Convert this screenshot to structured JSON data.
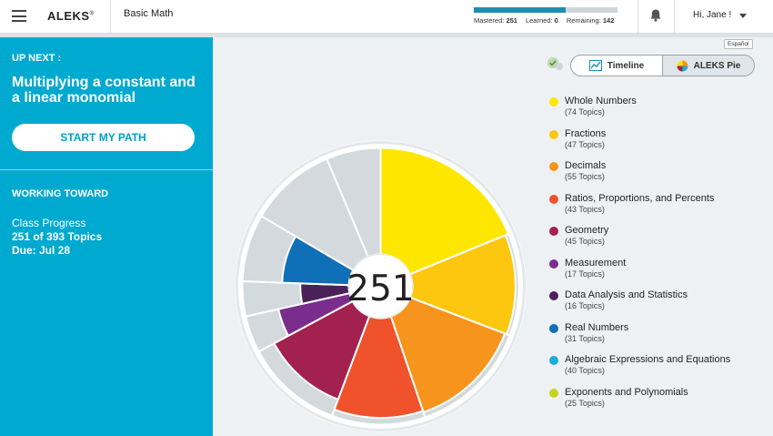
{
  "header": {
    "logo": "ALEKS",
    "logo_mark": "®",
    "course": "Basic Math",
    "progress": {
      "mastered_label": "Mastered:",
      "mastered": "251",
      "learned_label": "Learned:",
      "learned": "0",
      "remaining_label": "Remaining:",
      "remaining": "142",
      "mastered_fraction": 0.639
    },
    "user_greeting": "Hi, Jane !"
  },
  "sidebar": {
    "up_next_label": "UP NEXT :",
    "topic": "Multiplying a constant and a linear monomial",
    "start_button": "START MY PATH",
    "working_toward": "WORKING TOWARD",
    "class_progress_label": "Class Progress",
    "topics_progress": "251 of 393 Topics",
    "due": "Due: Jul 28"
  },
  "view_toggle": {
    "espanol": "Español",
    "options": [
      {
        "label": "Timeline",
        "icon": "timeline-icon",
        "active": false
      },
      {
        "label": "ALEKS Pie",
        "icon": "pie-icon",
        "active": true
      }
    ]
  },
  "pie": {
    "center_value": "251",
    "mastered_color": "varies by slice",
    "remaining_color": "#d3d9dc"
  },
  "legend": [
    {
      "name": "Whole Numbers",
      "count": "(74 Topics)",
      "color": "#ffe600",
      "total": 74,
      "mastered_fraction": 1.0
    },
    {
      "name": "Fractions",
      "count": "(47 Topics)",
      "color": "#fdc60f",
      "total": 47,
      "mastered_fraction": 0.95
    },
    {
      "name": "Decimals",
      "count": "(55 Topics)",
      "color": "#f7941d",
      "total": 55,
      "mastered_fraction": 0.92
    },
    {
      "name": "Ratios, Proportions, and Percents",
      "count": "(43 Topics)",
      "color": "#f0522b",
      "total": 43,
      "mastered_fraction": 0.9
    },
    {
      "name": "Geometry",
      "count": "(45 Topics)",
      "color": "#a3214e",
      "total": 45,
      "mastered_fraction": 0.75
    },
    {
      "name": "Measurement",
      "count": "(17 Topics)",
      "color": "#7b2d8e",
      "total": 17,
      "mastered_fraction": 0.55
    },
    {
      "name": "Data Analysis and Statistics",
      "count": "(16 Topics)",
      "color": "#4a2259",
      "total": 16,
      "mastered_fraction": 0.3
    },
    {
      "name": "Real Numbers",
      "count": "(31 Topics)",
      "color": "#0f70b8",
      "total": 31,
      "mastered_fraction": 0.48
    },
    {
      "name": "Algebraic Expressions and Equations",
      "count": "(40 Topics)",
      "color": "#1aaedb",
      "total": 40,
      "mastered_fraction": 0.0
    },
    {
      "name": "Exponents and Polynomials",
      "count": "(25 Topics)",
      "color": "#c7d31c",
      "total": 25,
      "mastered_fraction": 0.0
    }
  ]
}
